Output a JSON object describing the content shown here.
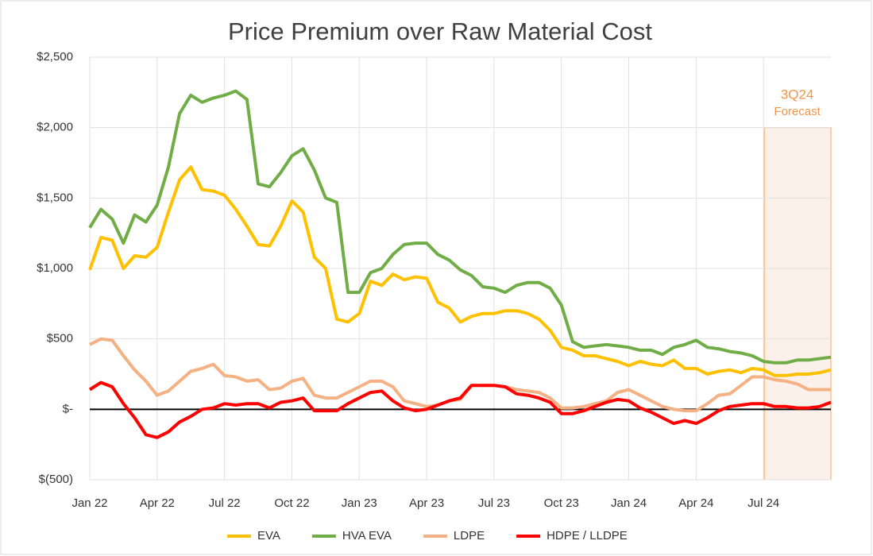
{
  "chart_data": {
    "type": "line",
    "title": "Price Premium over Raw Material Cost",
    "forecast_label": "3Q24",
    "forecast_sublabel": "Forecast",
    "categories": [
      "Jan 22",
      null,
      null,
      null,
      null,
      null,
      "Apr 22",
      null,
      null,
      null,
      null,
      null,
      "Jul 22",
      null,
      null,
      null,
      null,
      null,
      "Oct 22",
      null,
      null,
      null,
      null,
      null,
      "Jan 23",
      null,
      null,
      null,
      null,
      null,
      "Apr 23",
      null,
      null,
      null,
      null,
      null,
      "Jul 23",
      null,
      null,
      null,
      null,
      null,
      "Oct 23",
      null,
      null,
      null,
      null,
      null,
      "Jan 24",
      null,
      null,
      null,
      null,
      null,
      "Apr 24",
      null,
      null,
      null,
      null,
      null,
      "Jul 24",
      null,
      null,
      null,
      null,
      null,
      null
    ],
    "ylim": [
      -500,
      2500
    ],
    "yticks": [
      {
        "value": 2500,
        "label": "$2,500"
      },
      {
        "value": 2000,
        "label": "$2,000"
      },
      {
        "value": 1500,
        "label": "$1,500"
      },
      {
        "value": 1000,
        "label": "$1,000"
      },
      {
        "value": 500,
        "label": "$500"
      },
      {
        "value": 0,
        "label": "$-"
      },
      {
        "value": -500,
        "label": "$(500)"
      }
    ],
    "grid": true,
    "legend": "bottom",
    "series": [
      {
        "name": "EVA",
        "color": "#ffc000",
        "values": [
          990,
          1220,
          1200,
          1000,
          1090,
          1080,
          1150,
          1400,
          1630,
          1720,
          1560,
          1550,
          1520,
          1420,
          1300,
          1170,
          1160,
          1300,
          1480,
          1400,
          1080,
          1000,
          640,
          620,
          680,
          910,
          880,
          960,
          920,
          940,
          930,
          760,
          720,
          620,
          660,
          680,
          680,
          700,
          700,
          680,
          640,
          560,
          440,
          420,
          380,
          380,
          360,
          340,
          310,
          340,
          320,
          310,
          350,
          290,
          290,
          250,
          270,
          280,
          260,
          290,
          280,
          240,
          240,
          250,
          250,
          260,
          280
        ]
      },
      {
        "name": "HVA EVA",
        "color": "#70ad47",
        "values": [
          1290,
          1420,
          1350,
          1180,
          1380,
          1330,
          1450,
          1720,
          2100,
          2230,
          2180,
          2210,
          2230,
          2260,
          2200,
          1600,
          1580,
          1680,
          1800,
          1850,
          1700,
          1500,
          1470,
          830,
          830,
          970,
          1000,
          1100,
          1170,
          1180,
          1180,
          1100,
          1060,
          990,
          950,
          870,
          860,
          830,
          880,
          900,
          900,
          860,
          740,
          480,
          440,
          450,
          460,
          450,
          440,
          420,
          420,
          390,
          440,
          460,
          490,
          440,
          430,
          410,
          400,
          380,
          340,
          330,
          330,
          350,
          350,
          360,
          370
        ]
      },
      {
        "name": "LDPE",
        "color": "#f4b183",
        "values": [
          460,
          500,
          490,
          380,
          280,
          200,
          100,
          130,
          200,
          270,
          290,
          320,
          240,
          230,
          200,
          210,
          140,
          150,
          200,
          220,
          100,
          80,
          80,
          120,
          160,
          200,
          200,
          160,
          60,
          40,
          20,
          30,
          60,
          70,
          170,
          170,
          170,
          160,
          140,
          130,
          120,
          80,
          10,
          10,
          20,
          40,
          60,
          120,
          140,
          100,
          60,
          20,
          0,
          -10,
          -10,
          40,
          100,
          110,
          170,
          230,
          230,
          210,
          200,
          180,
          140,
          140,
          140
        ]
      },
      {
        "name": "HDPE / LLDPE",
        "color": "#ff0000",
        "values": [
          140,
          190,
          160,
          40,
          -60,
          -180,
          -200,
          -160,
          -90,
          -50,
          0,
          10,
          40,
          30,
          40,
          40,
          10,
          50,
          60,
          80,
          -10,
          -10,
          -10,
          40,
          80,
          120,
          130,
          60,
          10,
          -10,
          0,
          30,
          60,
          80,
          170,
          170,
          170,
          160,
          110,
          100,
          80,
          50,
          -30,
          -30,
          -10,
          20,
          50,
          70,
          60,
          10,
          -20,
          -60,
          -100,
          -80,
          -100,
          -60,
          -10,
          20,
          30,
          40,
          40,
          20,
          20,
          10,
          10,
          20,
          50
        ]
      }
    ]
  }
}
